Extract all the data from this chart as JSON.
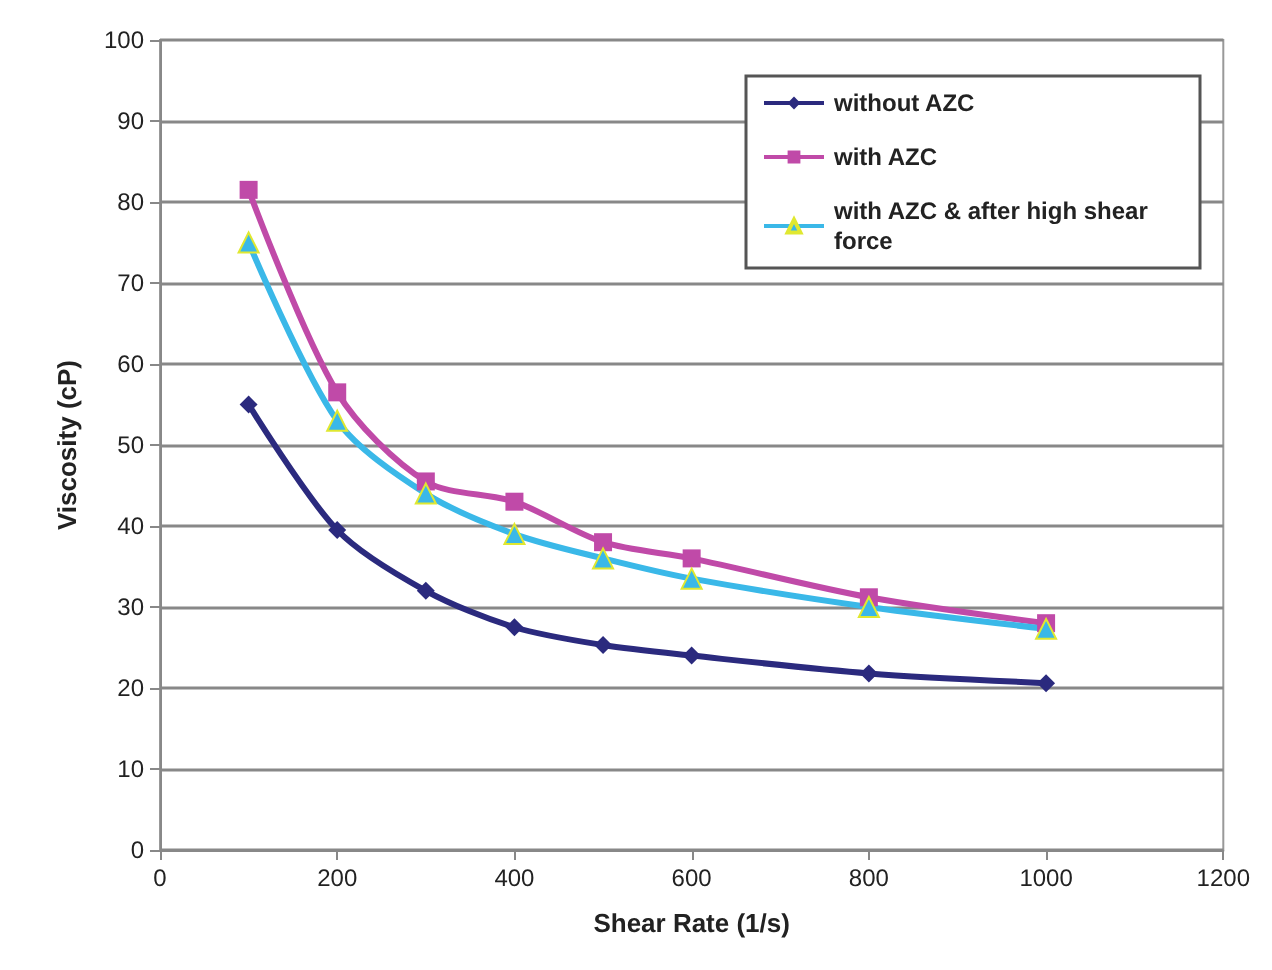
{
  "chart_data": {
    "type": "line",
    "xlabel": "Shear Rate (1/s)",
    "ylabel": "Viscosity (cP)",
    "x": [
      100,
      200,
      300,
      400,
      500,
      600,
      800,
      1000
    ],
    "xlim": [
      0,
      1200
    ],
    "xticks": [
      0,
      200,
      400,
      600,
      800,
      1000,
      1200
    ],
    "ylim": [
      0,
      100
    ],
    "yticks": [
      0,
      10,
      20,
      30,
      40,
      50,
      60,
      70,
      80,
      90,
      100
    ],
    "grid": "y",
    "legend": "top right",
    "series": [
      {
        "name": "without AZC",
        "color": "#2b2a7e",
        "marker": "diamond",
        "values": [
          55,
          39.5,
          32,
          27.5,
          25.3,
          24,
          21.8,
          20.6
        ]
      },
      {
        "name": "with AZC",
        "color": "#c04aa8",
        "marker": "square",
        "values": [
          81.5,
          56.5,
          45.5,
          43,
          38,
          36,
          31.2,
          28
        ]
      },
      {
        "name": "with AZC & after high shear force",
        "color": "#3ab8e8",
        "marker": "triangle",
        "values": [
          75,
          53,
          44,
          39,
          36,
          33.5,
          30,
          27.3
        ]
      }
    ]
  }
}
